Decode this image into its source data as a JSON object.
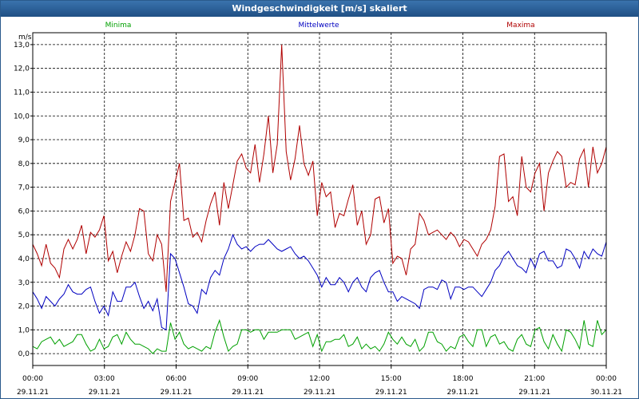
{
  "window": {
    "title": "Windgeschwindigkeit [m/s] skaliert"
  },
  "colors": {
    "minima": "#00a000",
    "mittel": "#0000c0",
    "maxima": "#b00000",
    "titlebar": "#2a5f96"
  },
  "chart_data": {
    "type": "line",
    "title": "Windgeschwindigkeit [m/s] skaliert",
    "ylabel": "m/s",
    "ylim": [
      -0.5,
      13.5
    ],
    "yticks": [
      0,
      1,
      2,
      3,
      4,
      5,
      6,
      7,
      8,
      9,
      10,
      11,
      12,
      13
    ],
    "ytick_labels": [
      "0,0",
      "1,0",
      "2,0",
      "3,0",
      "4,0",
      "5,0",
      "6,0",
      "7,0",
      "8,0",
      "9,0",
      "10,0",
      "11,0",
      "12,0",
      "13,0"
    ],
    "xlim": [
      0,
      24
    ],
    "xticks": [
      0,
      3,
      6,
      9,
      12,
      15,
      18,
      21,
      24
    ],
    "xtick_times": [
      "00:00",
      "03:00",
      "06:00",
      "09:00",
      "12:00",
      "15:00",
      "18:00",
      "21:00",
      "00:00"
    ],
    "xtick_dates": [
      "29.11.21",
      "29.11.21",
      "29.11.21",
      "29.11.21",
      "29.11.21",
      "29.11.21",
      "29.11.21",
      "29.11.21",
      "30.11.21"
    ],
    "grid": true,
    "legend_position": "top",
    "series": [
      {
        "name": "Minima",
        "color": "#00a000",
        "values": [
          0.3,
          0.2,
          0.5,
          0.6,
          0.7,
          0.4,
          0.6,
          0.3,
          0.4,
          0.5,
          0.8,
          0.8,
          0.4,
          0.1,
          0.2,
          0.6,
          0.2,
          0.3,
          0.7,
          0.8,
          0.4,
          0.9,
          0.6,
          0.4,
          0.4,
          0.3,
          0.2,
          0.0,
          0.2,
          0.1,
          0.1,
          1.3,
          0.6,
          0.9,
          0.4,
          0.2,
          0.3,
          0.2,
          0.1,
          0.3,
          0.2,
          0.9,
          1.4,
          0.7,
          0.1,
          0.3,
          0.4,
          1.0,
          1.0,
          0.9,
          1.0,
          1.0,
          0.6,
          0.9,
          0.9,
          0.9,
          1.0,
          1.0,
          1.0,
          0.6,
          0.7,
          0.8,
          0.9,
          0.3,
          0.8,
          0.1,
          0.5,
          0.5,
          0.6,
          0.6,
          0.8,
          0.3,
          0.4,
          0.7,
          0.2,
          0.4,
          0.2,
          0.3,
          0.1,
          0.4,
          0.9,
          0.6,
          0.4,
          0.7,
          0.4,
          0.3,
          0.6,
          0.1,
          0.3,
          0.9,
          0.9,
          0.5,
          0.4,
          0.1,
          0.3,
          0.2,
          0.7,
          0.8,
          0.5,
          0.3,
          1.0,
          1.0,
          0.3,
          0.7,
          0.8,
          0.4,
          0.5,
          0.2,
          0.1,
          0.6,
          0.8,
          0.4,
          0.3,
          1.0,
          1.1,
          0.5,
          0.2,
          0.8,
          0.4,
          0.1,
          1.0,
          0.9,
          0.6,
          0.2,
          1.4,
          0.4,
          0.3,
          1.4,
          0.8,
          1.0
        ]
      },
      {
        "name": "Mittelwerte",
        "color": "#0000c0",
        "values": [
          2.6,
          2.3,
          1.9,
          2.4,
          2.2,
          2.0,
          2.3,
          2.5,
          2.9,
          2.6,
          2.5,
          2.5,
          2.7,
          2.8,
          2.2,
          1.7,
          2.0,
          1.6,
          2.6,
          2.2,
          2.2,
          2.8,
          2.8,
          3.0,
          2.4,
          1.9,
          2.2,
          1.8,
          2.3,
          1.1,
          1.0,
          4.2,
          4.0,
          3.4,
          2.8,
          2.1,
          2.0,
          1.7,
          2.7,
          2.5,
          3.2,
          3.5,
          3.3,
          4.0,
          4.4,
          5.0,
          4.6,
          4.4,
          4.5,
          4.3,
          4.5,
          4.6,
          4.6,
          4.8,
          4.6,
          4.4,
          4.3,
          4.4,
          4.5,
          4.2,
          4.0,
          4.1,
          3.9,
          3.6,
          3.3,
          2.8,
          3.2,
          2.9,
          2.9,
          3.2,
          3.0,
          2.6,
          3.0,
          3.2,
          2.8,
          2.6,
          3.2,
          3.4,
          3.5,
          3.0,
          2.6,
          2.6,
          2.2,
          2.4,
          2.3,
          2.2,
          2.1,
          1.9,
          2.7,
          2.8,
          2.8,
          2.7,
          3.1,
          3.0,
          2.3,
          2.8,
          2.8,
          2.7,
          2.8,
          2.8,
          2.6,
          2.4,
          2.7,
          3.0,
          3.5,
          3.7,
          4.1,
          4.3,
          4.0,
          3.7,
          3.6,
          3.4,
          4.0,
          3.6,
          4.2,
          4.3,
          3.9,
          3.9,
          3.6,
          3.7,
          4.4,
          4.3,
          4.0,
          3.6,
          4.3,
          4.0,
          4.4,
          4.2,
          4.1,
          4.7
        ]
      },
      {
        "name": "Maxima",
        "color": "#b00000",
        "values": [
          4.6,
          4.2,
          3.7,
          4.6,
          3.8,
          3.6,
          3.2,
          4.4,
          4.8,
          4.4,
          4.8,
          5.4,
          4.2,
          5.1,
          4.9,
          5.2,
          5.8,
          3.9,
          4.3,
          3.4,
          4.1,
          4.7,
          4.3,
          5.0,
          6.1,
          6.0,
          4.2,
          3.9,
          5.0,
          4.6,
          2.6,
          6.4,
          7.2,
          8.0,
          5.6,
          5.7,
          4.9,
          5.1,
          4.7,
          5.6,
          6.3,
          6.8,
          5.4,
          7.2,
          6.1,
          7.1,
          8.1,
          8.4,
          7.8,
          7.6,
          8.8,
          7.2,
          8.4,
          10.0,
          7.6,
          8.8,
          13.0,
          8.5,
          7.3,
          8.2,
          9.6,
          8.0,
          7.5,
          8.1,
          5.8,
          7.2,
          6.6,
          6.8,
          5.3,
          5.9,
          5.8,
          6.5,
          7.1,
          5.4,
          6.0,
          4.6,
          5.0,
          6.5,
          6.6,
          5.5,
          6.1,
          3.8,
          4.1,
          4.0,
          3.3,
          4.4,
          4.6,
          5.9,
          5.6,
          5.0,
          5.1,
          5.2,
          5.0,
          4.8,
          5.1,
          4.9,
          4.5,
          4.8,
          4.7,
          4.4,
          4.1,
          4.6,
          4.8,
          5.2,
          6.2,
          8.3,
          8.4,
          6.4,
          6.6,
          5.8,
          8.3,
          7.0,
          6.8,
          7.6,
          8.0,
          6.0,
          7.6,
          8.1,
          8.5,
          8.3,
          7.0,
          7.2,
          7.1,
          8.2,
          8.6,
          7.0,
          8.7,
          7.6,
          8.0,
          8.7
        ]
      }
    ]
  }
}
